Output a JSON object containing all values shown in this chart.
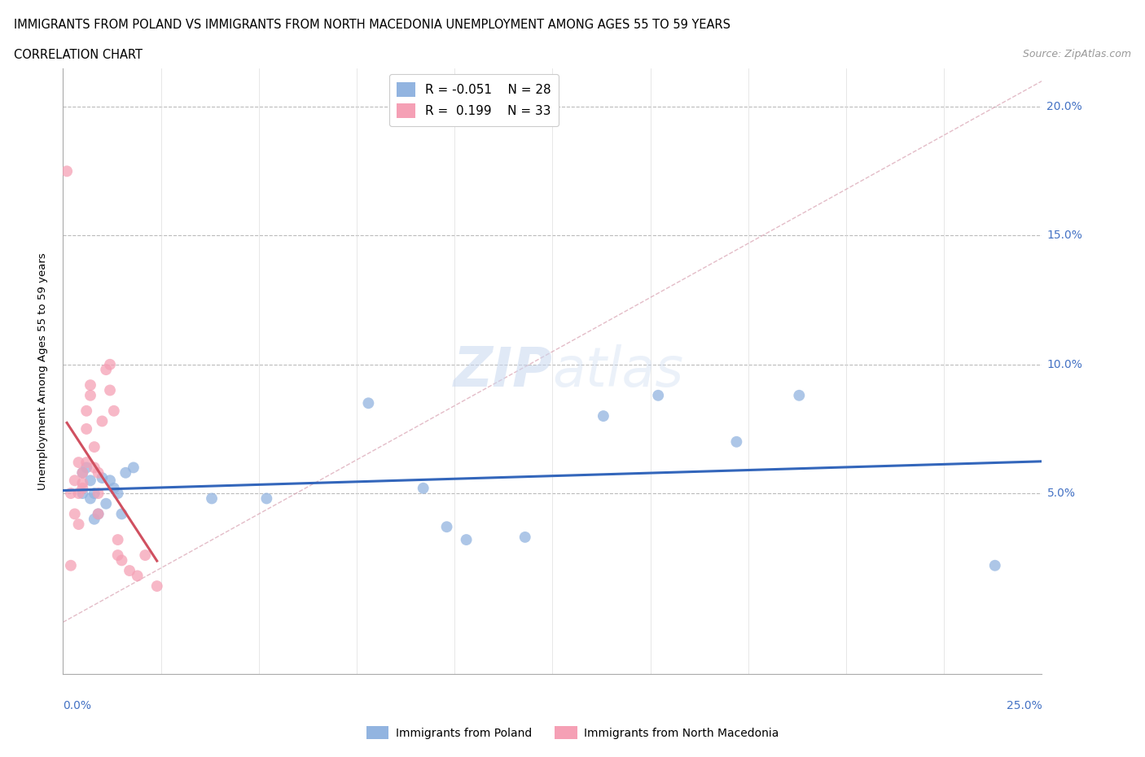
{
  "title_line1": "IMMIGRANTS FROM POLAND VS IMMIGRANTS FROM NORTH MACEDONIA UNEMPLOYMENT AMONG AGES 55 TO 59 YEARS",
  "title_line2": "CORRELATION CHART",
  "source": "Source: ZipAtlas.com",
  "ylabel": "Unemployment Among Ages 55 to 59 years",
  "xlim": [
    0.0,
    0.25
  ],
  "ylim": [
    -0.02,
    0.215
  ],
  "yticks": [
    0.05,
    0.1,
    0.15,
    0.2
  ],
  "ytick_labels": [
    "5.0%",
    "10.0%",
    "15.0%",
    "20.0%"
  ],
  "poland_color": "#92B4E0",
  "macedonia_color": "#F5A0B5",
  "poland_line_color": "#3366BB",
  "macedonia_line_color": "#D05060",
  "diag_line_color": "#D8A0B0",
  "poland_x": [
    0.005,
    0.005,
    0.006,
    0.007,
    0.007,
    0.008,
    0.008,
    0.009,
    0.01,
    0.011,
    0.012,
    0.013,
    0.014,
    0.015,
    0.016,
    0.018,
    0.038,
    0.052,
    0.078,
    0.092,
    0.098,
    0.103,
    0.118,
    0.138,
    0.152,
    0.172,
    0.188,
    0.238
  ],
  "poland_y": [
    0.05,
    0.058,
    0.06,
    0.048,
    0.055,
    0.05,
    0.04,
    0.042,
    0.056,
    0.046,
    0.055,
    0.052,
    0.05,
    0.042,
    0.058,
    0.06,
    0.048,
    0.048,
    0.085,
    0.052,
    0.037,
    0.032,
    0.033,
    0.08,
    0.088,
    0.07,
    0.088,
    0.022
  ],
  "macedonia_x": [
    0.001,
    0.002,
    0.002,
    0.003,
    0.003,
    0.004,
    0.004,
    0.004,
    0.005,
    0.005,
    0.005,
    0.006,
    0.006,
    0.006,
    0.007,
    0.007,
    0.008,
    0.008,
    0.009,
    0.009,
    0.009,
    0.01,
    0.011,
    0.012,
    0.012,
    0.013,
    0.014,
    0.014,
    0.015,
    0.017,
    0.019,
    0.021,
    0.024
  ],
  "macedonia_y": [
    0.175,
    0.05,
    0.022,
    0.055,
    0.042,
    0.062,
    0.05,
    0.038,
    0.058,
    0.054,
    0.052,
    0.082,
    0.075,
    0.062,
    0.092,
    0.088,
    0.068,
    0.06,
    0.058,
    0.05,
    0.042,
    0.078,
    0.098,
    0.1,
    0.09,
    0.082,
    0.032,
    0.026,
    0.024,
    0.02,
    0.018,
    0.026,
    0.014
  ],
  "watermark1": "ZIP",
  "watermark2": "atlas",
  "legend_r_poland": "-0.051",
  "legend_n_poland": "28",
  "legend_r_macedonia": "0.199",
  "legend_n_macedonia": "33"
}
